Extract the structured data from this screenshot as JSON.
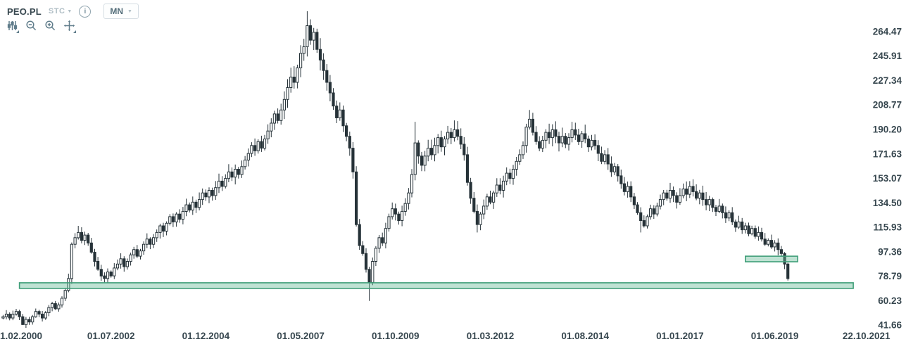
{
  "header": {
    "symbol": "PEO.PL",
    "indicator": "STC",
    "timeframe": "MN",
    "info_label": "i"
  },
  "toolbar": {
    "tools": [
      {
        "name": "indicators-icon",
        "has_submenu": true
      },
      {
        "name": "zoom-out-icon",
        "has_submenu": false
      },
      {
        "name": "zoom-in-icon",
        "has_submenu": false
      },
      {
        "name": "pan-icon",
        "has_submenu": true
      }
    ]
  },
  "colors": {
    "candle": "#263238",
    "candle_up_fill": "#ffffff",
    "zone_fill": "rgba(102,187,150,0.42)",
    "zone_border": "#3f9e78",
    "axis_text": "#37474f",
    "background": "#ffffff"
  },
  "chart_data": {
    "type": "candlestick",
    "symbol": "PEO.PL",
    "timeframe": "monthly",
    "grid": false,
    "up_candle_style": "hollow",
    "down_candle_style": "filled",
    "start_month": "1999-10",
    "first_open": 47,
    "closes": [
      48,
      50,
      47,
      50,
      52,
      48,
      42,
      46,
      44,
      48,
      52,
      50,
      47,
      51,
      55,
      58,
      54,
      57,
      62,
      68,
      77,
      103,
      108,
      112,
      106,
      110,
      104,
      97,
      90,
      84,
      79,
      77,
      82,
      79,
      85,
      88,
      92,
      86,
      90,
      95,
      99,
      94,
      98,
      103,
      107,
      103,
      108,
      112,
      117,
      113,
      119,
      124,
      120,
      126,
      122,
      128,
      133,
      129,
      135,
      131,
      137,
      142,
      139,
      144,
      140,
      146,
      151,
      147,
      153,
      158,
      154,
      160,
      156,
      162,
      167,
      172,
      178,
      174,
      181,
      176,
      183,
      189,
      195,
      202,
      197,
      205,
      213,
      222,
      230,
      226,
      237,
      248,
      253,
      269,
      258,
      264,
      251,
      243,
      235,
      226,
      218,
      208,
      199,
      205,
      193,
      185,
      176,
      158,
      118,
      102,
      96,
      84,
      74,
      90,
      100,
      108,
      104,
      115,
      124,
      130,
      126,
      121,
      128,
      134,
      142,
      156,
      180,
      170,
      163,
      170,
      176,
      171,
      178,
      184,
      177,
      183,
      188,
      184,
      190,
      185,
      179,
      171,
      150,
      138,
      128,
      118,
      126,
      132,
      139,
      135,
      142,
      148,
      144,
      151,
      157,
      153,
      160,
      166,
      171,
      178,
      192,
      198,
      188,
      181,
      176,
      182,
      188,
      184,
      190,
      185,
      180,
      185,
      179,
      184,
      190,
      186,
      181,
      187,
      183,
      177,
      182,
      178,
      172,
      166,
      171,
      164,
      158,
      162,
      155,
      149,
      143,
      147,
      139,
      133,
      127,
      121,
      117,
      124,
      130,
      126,
      132,
      137,
      142,
      138,
      144,
      140,
      135,
      140,
      145,
      141,
      147,
      143,
      138,
      142,
      137,
      133,
      137,
      131,
      128,
      132,
      127,
      123,
      127,
      120,
      116,
      120,
      114,
      117,
      111,
      115,
      109,
      112,
      107,
      103,
      106,
      101,
      104,
      99,
      96,
      88,
      77
    ],
    "wick_overrides": {
      "6": {
        "low": 41.7
      },
      "23": {
        "high": 117
      },
      "93": {
        "high": 280
      },
      "112": {
        "low": 60
      },
      "126": {
        "high": 196
      },
      "145": {
        "low": 112
      },
      "161": {
        "high": 205
      },
      "195": {
        "low": 112
      },
      "240": {
        "low": 75.5,
        "high": 89
      }
    },
    "ylabel": "",
    "xlabel": "",
    "y_ticks": [
      "264.47",
      "245.91",
      "227.34",
      "208.77",
      "190.20",
      "171.63",
      "153.07",
      "134.50",
      "115.93",
      "97.36",
      "78.79",
      "60.23",
      "41.66"
    ],
    "x_ticks": [
      {
        "label": "1.02.2000",
        "month": "2000-02"
      },
      {
        "label": "01.07.2002",
        "month": "2002-07"
      },
      {
        "label": "01.12.2004",
        "month": "2004-12"
      },
      {
        "label": "01.05.2007",
        "month": "2007-05"
      },
      {
        "label": "01.10.2009",
        "month": "2009-10"
      },
      {
        "label": "01.03.2012",
        "month": "2012-03"
      },
      {
        "label": "01.08.2014",
        "month": "2014-08"
      },
      {
        "label": "01.01.2017",
        "month": "2017-01"
      },
      {
        "label": "01.06.2019",
        "month": "2019-06"
      },
      {
        "label": "22.10.2021",
        "month": "2021-10"
      }
    ],
    "support_zones": [
      {
        "name": "long-support-zone",
        "from": "2000-03",
        "to": "2021-06",
        "price_top": 73.8,
        "price_bottom": 69.5
      },
      {
        "name": "short-support-zone",
        "from": "2018-09",
        "to": "2020-01",
        "price_top": 94.0,
        "price_bottom": 89.8
      }
    ]
  }
}
